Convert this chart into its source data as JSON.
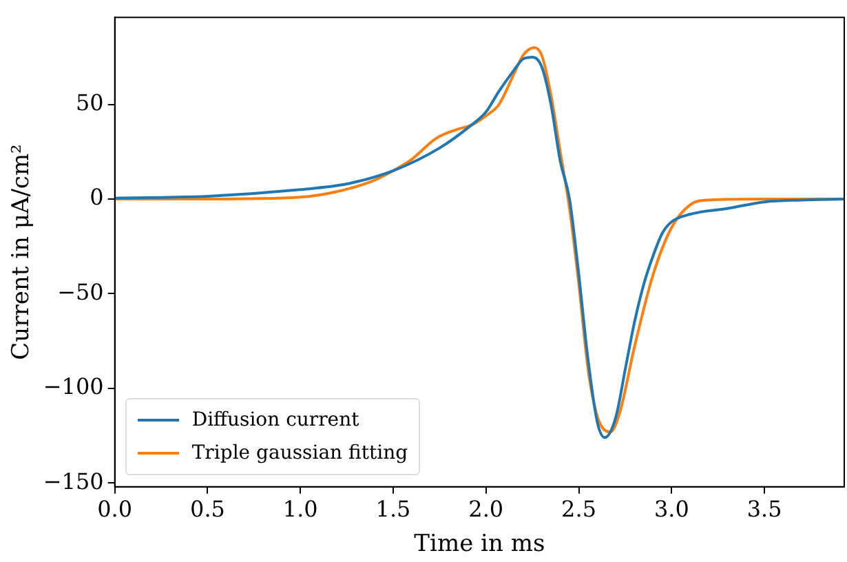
{
  "chart_data": {
    "type": "line",
    "xlabel": "Time in ms",
    "ylabel": "Current in μA/cm²",
    "xlim": [
      0,
      3.93
    ],
    "ylim": [
      -152,
      96
    ],
    "xticks": [
      {
        "value": 0,
        "label": "0.0"
      },
      {
        "value": 0.5,
        "label": "0.5"
      },
      {
        "value": 1,
        "label": "1.0"
      },
      {
        "value": 1.5,
        "label": "1.5"
      },
      {
        "value": 2,
        "label": "2.0"
      },
      {
        "value": 2.5,
        "label": "2.5"
      },
      {
        "value": 3,
        "label": "3.0"
      },
      {
        "value": 3.5,
        "label": "3.5"
      }
    ],
    "yticks": [
      {
        "value": -150,
        "label": "−150"
      },
      {
        "value": -100,
        "label": "−100"
      },
      {
        "value": -50,
        "label": "−50"
      },
      0,
      50
    ],
    "grid": false,
    "legend": "bottom left",
    "marker": "none",
    "line_style": "solid",
    "series": [
      {
        "name": "Diffusion current",
        "color": "#1f77b4",
        "x": [
          0,
          0.5,
          1,
          1.25,
          1.5,
          1.75,
          1.92,
          2.0,
          2.07,
          2.15,
          2.2,
          2.25,
          2.3,
          2.35,
          2.4,
          2.45,
          2.5,
          2.55,
          2.6,
          2.64,
          2.7,
          2.75,
          2.8,
          2.85,
          2.9,
          2.95,
          3.0,
          3.1,
          3.3,
          3.5,
          3.7,
          3.93
        ],
        "values": [
          0.5,
          1.5,
          5,
          8,
          15,
          27,
          39,
          46,
          57,
          68,
          74,
          75,
          70,
          50,
          20,
          0,
          -40,
          -85,
          -118,
          -126,
          -115,
          -90,
          -65,
          -45,
          -30,
          -18,
          -12,
          -8,
          -5,
          -1.5,
          -0.5,
          0
        ]
      },
      {
        "name": "Triple gaussian fitting",
        "color": "#ff7f0e",
        "x": [
          0,
          0.5,
          1,
          1.2,
          1.4,
          1.5,
          1.6,
          1.73,
          1.85,
          1.92,
          2.0,
          2.07,
          2.15,
          2.2,
          2.26,
          2.3,
          2.35,
          2.4,
          2.45,
          2.5,
          2.55,
          2.6,
          2.67,
          2.72,
          2.8,
          2.9,
          3.0,
          3.1,
          3.2,
          3.5,
          3.93
        ],
        "values": [
          0,
          0,
          1,
          4,
          10,
          15,
          21,
          32,
          37,
          39,
          44,
          50,
          66,
          76,
          80,
          76,
          55,
          25,
          -5,
          -45,
          -90,
          -115,
          -123,
          -113,
          -78,
          -40,
          -15,
          -3,
          -0.5,
          0,
          0
        ]
      }
    ]
  }
}
